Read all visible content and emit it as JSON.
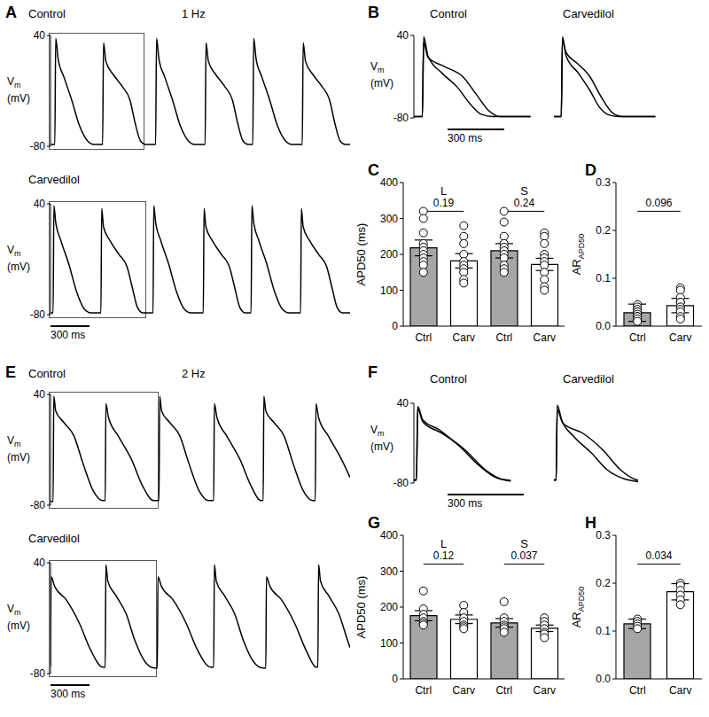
{
  "chart_data": [
    {
      "type": "line",
      "panel": "A",
      "title": "Control",
      "subtitle": "1 Hz",
      "ylabel": {
        "text": "V",
        "subscript": "m",
        "unit": "(mV)"
      },
      "xlim": [
        0,
        2300
      ],
      "ylim": [
        -80,
        40
      ],
      "yticks": [
        -80,
        40
      ],
      "tick_labels": "y",
      "series": [
        {
          "color": "#000000",
          "x": [
            0,
            33,
            40,
            58,
            103,
            163,
            223,
            283,
            333,
            400,
            407,
            425,
            480,
            550,
            610,
            650,
            690,
            730,
            807,
            814,
            832,
            877,
            937,
            997,
            1057,
            1107,
            1187,
            1194,
            1212,
            1267,
            1337,
            1397,
            1437,
            1477,
            1517,
            1553,
            1560,
            1578,
            1623,
            1683,
            1743,
            1803,
            1853,
            1933,
            1940,
            1958,
            2013,
            2083,
            2143,
            2183,
            2223,
            2263,
            2300
          ],
          "values": [
            -78,
            -78,
            37,
            15,
            -5,
            -30,
            -58,
            -74,
            -78,
            -78,
            32,
            12,
            -2,
            -15,
            -30,
            -55,
            -74,
            -78,
            -78,
            37,
            15,
            -5,
            -30,
            -58,
            -74,
            -78,
            -78,
            32,
            12,
            -2,
            -15,
            -30,
            -55,
            -74,
            -78,
            -78,
            37,
            15,
            -5,
            -30,
            -58,
            -74,
            -78,
            -78,
            32,
            12,
            -2,
            -15,
            -30,
            -55,
            -74,
            -78,
            -78
          ]
        }
      ]
    },
    {
      "type": "line",
      "title": "Carvedilol",
      "ylabel": {
        "text": "V",
        "subscript": "m",
        "unit": "(mV)"
      },
      "xlim": [
        0,
        2300
      ],
      "ylim": [
        -80,
        40
      ],
      "yticks": [
        -80,
        40
      ],
      "tick_labels": "y",
      "scale_bar": {
        "value": 300,
        "label": "300 ms"
      },
      "series": [
        {
          "color": "#000000",
          "x": [
            0,
            20,
            26,
            40,
            80,
            140,
            200,
            260,
            310,
            387,
            393,
            407,
            457,
            527,
            587,
            627,
            667,
            707,
            787,
            793,
            807,
            847,
            907,
            967,
            1027,
            1077,
            1173,
            1179,
            1193,
            1243,
            1313,
            1373,
            1413,
            1453,
            1493,
            1540,
            1546,
            1560,
            1600,
            1660,
            1720,
            1780,
            1830,
            1920,
            1926,
            1940,
            1990,
            2060,
            2120,
            2160,
            2200,
            2240,
            2300
          ],
          "values": [
            -78,
            -78,
            38,
            20,
            0,
            -25,
            -55,
            -74,
            -78,
            -78,
            35,
            15,
            0,
            -15,
            -28,
            -50,
            -72,
            -78,
            -78,
            38,
            20,
            0,
            -25,
            -55,
            -74,
            -78,
            -78,
            35,
            15,
            0,
            -15,
            -28,
            -50,
            -72,
            -78,
            -78,
            38,
            20,
            0,
            -25,
            -55,
            -74,
            -78,
            -78,
            35,
            15,
            0,
            -15,
            -28,
            -50,
            -72,
            -78,
            -78
          ]
        }
      ]
    },
    {
      "type": "line",
      "panel": "B",
      "title": "Control",
      "ylabel": {
        "text": "V",
        "subscript": "m",
        "unit": "(mV)"
      },
      "xlim": [
        0,
        650
      ],
      "ylim": [
        -80,
        40
      ],
      "yticks": [
        -80,
        40
      ],
      "tick_labels": "y",
      "scale_bar": {
        "value": 300,
        "label": "300 ms"
      },
      "series": [
        {
          "color": "#000000",
          "x": [
            0,
            45,
            52,
            75,
            150,
            230,
            300,
            360,
            420,
            620
          ],
          "values": [
            -78,
            -78,
            38,
            10,
            -15,
            -35,
            -60,
            -75,
            -78,
            -78
          ]
        },
        {
          "color": "#000000",
          "x": [
            0,
            45,
            52,
            75,
            160,
            260,
            330,
            400,
            460,
            620
          ],
          "values": [
            -78,
            -78,
            30,
            8,
            -5,
            -20,
            -45,
            -70,
            -78,
            -78
          ]
        }
      ]
    },
    {
      "type": "line",
      "title": "Carvedilol",
      "xlim": [
        0,
        650
      ],
      "ylim": [
        -80,
        40
      ],
      "tick_labels": false,
      "series": [
        {
          "color": "#000000",
          "x": [
            0,
            45,
            52,
            75,
            150,
            220,
            280,
            340,
            400,
            620
          ],
          "values": [
            -78,
            -78,
            38,
            10,
            -15,
            -40,
            -65,
            -76,
            -78,
            -78
          ]
        },
        {
          "color": "#000000",
          "x": [
            0,
            45,
            52,
            75,
            140,
            220,
            290,
            360,
            420,
            620
          ],
          "values": [
            -78,
            -78,
            32,
            15,
            0,
            -20,
            -50,
            -73,
            -78,
            -78
          ]
        }
      ]
    },
    {
      "type": "bar",
      "panel": "C",
      "ylabel": {
        "text": "APD50 (ms)"
      },
      "categories": [
        "Ctrl",
        "Carv",
        "Ctrl",
        "Carv"
      ],
      "values": [
        218,
        182,
        210,
        172
      ],
      "errors": [
        22,
        20,
        20,
        17
      ],
      "points": [
        [
          320,
          300,
          260,
          230,
          220,
          210,
          200,
          190,
          180,
          170,
          150
        ],
        [
          280,
          250,
          230,
          200,
          180,
          170,
          160,
          150,
          130,
          120
        ],
        [
          320,
          290,
          250,
          230,
          220,
          210,
          200,
          190,
          170,
          160,
          150
        ],
        [
          260,
          250,
          230,
          200,
          190,
          180,
          170,
          150,
          130,
          110,
          100
        ]
      ],
      "colors": [
        "#a6a6a6",
        "#ffffff",
        "#a6a6a6",
        "#ffffff"
      ],
      "ylim": [
        0,
        400
      ],
      "yticks": [
        0,
        100,
        200,
        300,
        400
      ],
      "groups": [
        {
          "label": "L",
          "p": 0.19
        },
        {
          "label": "S",
          "p": 0.24
        }
      ]
    },
    {
      "type": "bar",
      "panel": "D",
      "ylabel": {
        "text": "AR",
        "subscript": "APD50"
      },
      "categories": [
        "Ctrl",
        "Carv"
      ],
      "values": [
        0.028,
        0.043
      ],
      "errors": [
        0.018,
        0.015
      ],
      "points": [
        [
          0.045,
          0.04,
          0.035,
          0.03,
          0.03,
          0.025,
          0.02,
          0.02,
          0.015,
          0.01
        ],
        [
          0.08,
          0.075,
          0.06,
          0.05,
          0.05,
          0.04,
          0.035,
          0.03,
          0.02,
          0.015
        ]
      ],
      "colors": [
        "#a6a6a6",
        "#ffffff"
      ],
      "ylim": [
        0,
        0.3
      ],
      "yticks": [
        {
          "value": 0,
          "label": "0.0"
        },
        0.1,
        0.2,
        0.3
      ],
      "groups": [
        {
          "p": 0.096
        }
      ]
    },
    {
      "type": "line",
      "panel": "E",
      "title": "Control",
      "subtitle": "2 Hz",
      "ylabel": {
        "text": "V",
        "subscript": "m",
        "unit": "(mV)"
      },
      "xlim": [
        0,
        2300
      ],
      "ylim": [
        -80,
        40
      ],
      "yticks": [
        -80,
        40
      ],
      "tick_labels": "y",
      "series": [
        {
          "color": "#000000",
          "x": [
            0,
            20,
            25,
            40,
            100,
            180,
            250,
            330,
            400,
            420,
            425,
            445,
            520,
            620,
            710,
            790,
            833,
            838,
            853,
            913,
            993,
            1063,
            1143,
            1213,
            1253,
            1258,
            1278,
            1353,
            1453,
            1543,
            1613,
            1633,
            1638,
            1653,
            1713,
            1793,
            1863,
            1943,
            2013,
            2033,
            2038,
            2058,
            2133,
            2233,
            2300
          ],
          "values": [
            -76,
            -76,
            38,
            22,
            10,
            -5,
            -35,
            -65,
            -75,
            -75,
            30,
            15,
            -5,
            -30,
            -60,
            -75,
            -75,
            38,
            22,
            10,
            -5,
            -35,
            -65,
            -75,
            -75,
            30,
            15,
            -5,
            -30,
            -60,
            -75,
            -75,
            38,
            22,
            10,
            -5,
            -35,
            -65,
            -75,
            -75,
            30,
            15,
            -5,
            -30,
            -50
          ]
        }
      ]
    },
    {
      "type": "line",
      "title": "Carvedilol",
      "ylabel": {
        "text": "V",
        "subscript": "m",
        "unit": "(mV)"
      },
      "xlim": [
        0,
        2300
      ],
      "ylim": [
        -80,
        40
      ],
      "yticks": [
        -80,
        40
      ],
      "tick_labels": "y",
      "scale_bar": {
        "value": 300,
        "label": "300 ms"
      },
      "series": [
        {
          "color": "#000000",
          "x": [
            0,
            5,
            30,
            120,
            220,
            310,
            400,
            420,
            425,
            440,
            500,
            580,
            650,
            730,
            800,
            820,
            825,
            850,
            940,
            1040,
            1130,
            1230,
            1253,
            1258,
            1273,
            1333,
            1413,
            1483,
            1563,
            1633,
            1653,
            1658,
            1683,
            1773,
            1873,
            1963,
            2040,
            2053,
            2058,
            2073,
            2133,
            2213,
            2283,
            2300
          ],
          "values": [
            -72,
            25,
            15,
            0,
            -25,
            -55,
            -73,
            -73,
            38,
            20,
            5,
            -15,
            -45,
            -68,
            -74,
            -74,
            25,
            15,
            0,
            -25,
            -55,
            -73,
            -73,
            38,
            20,
            5,
            -15,
            -45,
            -68,
            -74,
            -74,
            25,
            15,
            0,
            -25,
            -55,
            -73,
            -73,
            38,
            20,
            5,
            -15,
            -45,
            -52
          ]
        }
      ]
    },
    {
      "type": "line",
      "panel": "F",
      "title": "Control",
      "ylabel": {
        "text": "V",
        "subscript": "m",
        "unit": "(mV)"
      },
      "xlim": [
        0,
        480
      ],
      "ylim": [
        -80,
        40
      ],
      "yticks": [
        -80,
        40
      ],
      "tick_labels": "y",
      "scale_bar": {
        "value": 300,
        "label": "300 ms"
      },
      "series": [
        {
          "color": "#000000",
          "x": [
            0,
            10,
            15,
            35,
            100,
            180,
            260,
            330,
            380
          ],
          "values": [
            -75,
            -75,
            35,
            15,
            0,
            -25,
            -55,
            -73,
            -76
          ]
        },
        {
          "color": "#000000",
          "x": [
            0,
            10,
            15,
            35,
            110,
            200,
            280,
            350,
            380
          ],
          "values": [
            -76,
            -76,
            32,
            12,
            -5,
            -30,
            -60,
            -75,
            -77
          ]
        }
      ]
    },
    {
      "type": "line",
      "title": "Carvedilol",
      "xlim": [
        0,
        480
      ],
      "ylim": [
        -80,
        40
      ],
      "tick_labels": false,
      "series": [
        {
          "color": "#000000",
          "x": [
            0,
            10,
            15,
            35,
            90,
            170,
            240,
            320,
            380
          ],
          "values": [
            -75,
            -75,
            37,
            15,
            -10,
            -35,
            -60,
            -74,
            -78
          ]
        },
        {
          "color": "#000000",
          "x": [
            0,
            10,
            15,
            40,
            130,
            220,
            300,
            370,
            380
          ],
          "values": [
            -76,
            -76,
            30,
            10,
            -5,
            -30,
            -60,
            -75,
            -76
          ]
        }
      ]
    },
    {
      "type": "bar",
      "panel": "G",
      "ylabel": {
        "text": "APD50 (ms)"
      },
      "categories": [
        "Ctrl",
        "Carv",
        "Ctrl",
        "Carv"
      ],
      "values": [
        176,
        166,
        156,
        141
      ],
      "errors": [
        14,
        12,
        12,
        9
      ],
      "points": [
        [
          245,
          195,
          180,
          170,
          160,
          155,
          150
        ],
        [
          205,
          185,
          170,
          160,
          150,
          145,
          140
        ],
        [
          215,
          170,
          160,
          150,
          145,
          140,
          130
        ],
        [
          170,
          160,
          150,
          140,
          130,
          125,
          115
        ]
      ],
      "colors": [
        "#a6a6a6",
        "#ffffff",
        "#a6a6a6",
        "#ffffff"
      ],
      "ylim": [
        0,
        400
      ],
      "yticks": [
        0,
        100,
        200,
        300,
        400
      ],
      "groups": [
        {
          "label": "L",
          "p": 0.12
        },
        {
          "label": "S",
          "p": 0.037
        }
      ]
    },
    {
      "type": "bar",
      "panel": "H",
      "ylabel": {
        "text": "AR",
        "subscript": "APD50"
      },
      "categories": [
        "Ctrl",
        "Carv"
      ],
      "values": [
        0.115,
        0.182
      ],
      "errors": [
        0.01,
        0.017
      ],
      "points": [
        [
          0.125,
          0.12,
          0.115,
          0.11,
          0.105
        ],
        [
          0.2,
          0.195,
          0.185,
          0.175,
          0.165,
          0.155
        ]
      ],
      "colors": [
        "#a6a6a6",
        "#ffffff"
      ],
      "ylim": [
        0,
        0.3
      ],
      "yticks": [
        {
          "value": 0,
          "label": "0.0"
        },
        0.1,
        0.2,
        0.3
      ],
      "groups": [
        {
          "p": 0.034
        }
      ]
    }
  ]
}
